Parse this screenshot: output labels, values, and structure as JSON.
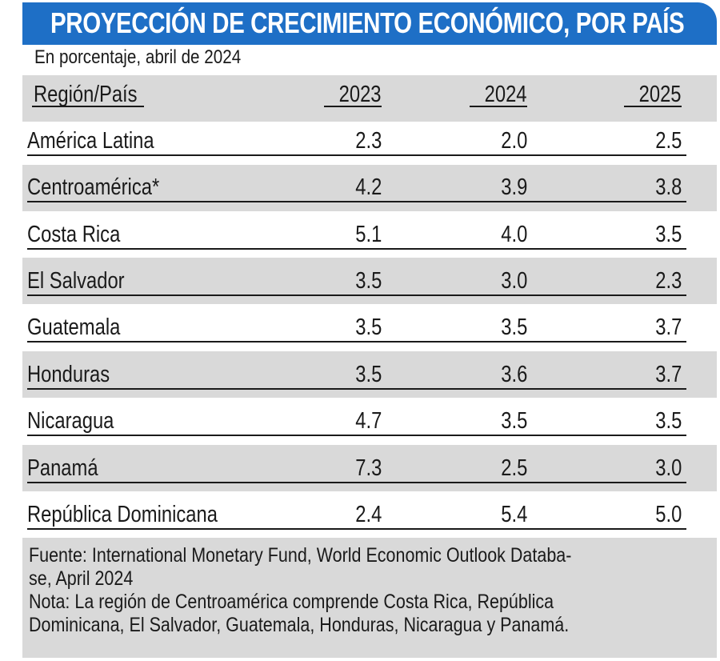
{
  "header": {
    "title": "PROYECCIÓN DE CRECIMIENTO ECONÓMICO, POR PAÍS",
    "subtitle": "En porcentaje, abril de 2024"
  },
  "table": {
    "columns": [
      "Región/País",
      "2023",
      "2024",
      "2025"
    ],
    "rows": [
      {
        "region": "América Latina",
        "v2023": "2.3",
        "v2024": "2.0",
        "v2025": "2.5"
      },
      {
        "region": "Centroamérica*",
        "v2023": "4.2",
        "v2024": "3.9",
        "v2025": "3.8"
      },
      {
        "region": "Costa Rica",
        "v2023": "5.1",
        "v2024": "4.0",
        "v2025": "3.5"
      },
      {
        "region": "El Salvador",
        "v2023": "3.5",
        "v2024": "3.0",
        "v2025": "2.3"
      },
      {
        "region": "Guatemala",
        "v2023": "3.5",
        "v2024": "3.5",
        "v2025": "3.7"
      },
      {
        "region": "Honduras",
        "v2023": "3.5",
        "v2024": "3.6",
        "v2025": "3.7"
      },
      {
        "region": "Nicaragua",
        "v2023": "4.7",
        "v2024": "3.5",
        "v2025": "3.5"
      },
      {
        "region": "Panamá",
        "v2023": "7.3",
        "v2024": "2.5",
        "v2025": "3.0"
      },
      {
        "region": "República Dominicana",
        "v2023": "2.4",
        "v2024": "5.4",
        "v2025": "5.0"
      }
    ]
  },
  "footer": {
    "source_line1": "Fuente: International Monetary Fund, World Economic Outlook Databa-",
    "source_line2": "se, April 2024",
    "note_line1": "Nota: La región de Centroamérica comprende Costa Rica, República",
    "note_line2": "Dominicana, El Salvador, Guatemala, Honduras, Nicaragua y Panamá."
  },
  "colors": {
    "title_bar": "#1e6fc6",
    "band_gray": "#d9d9d9",
    "text": "#1a1a1a"
  }
}
